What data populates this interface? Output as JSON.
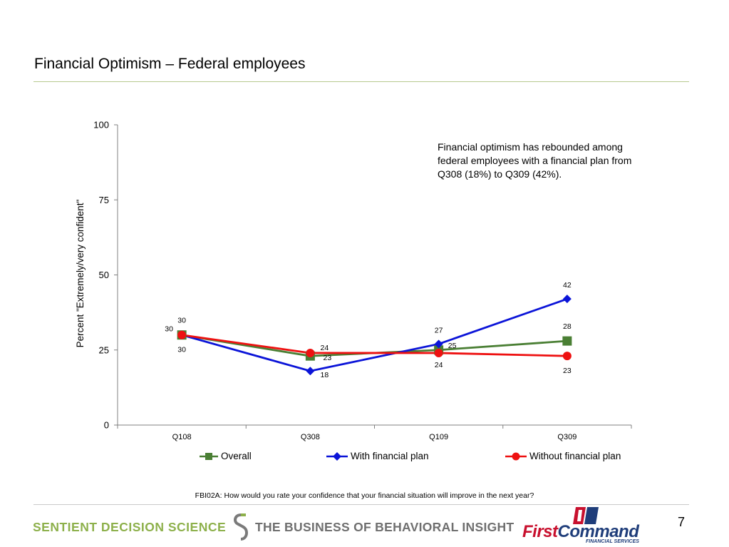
{
  "slide": {
    "title": "Financial Optimism – Federal employees",
    "page_number": "7",
    "question_note": "FBI02A: How would you rate your confidence that your financial situation will improve in the next year?"
  },
  "footer": {
    "left_logo_text": "SENTIENT DECISION SCIENCE",
    "tagline": "THE BUSINESS OF BEHAVIORAL INSIGHT",
    "right_logo_first": "First",
    "right_logo_command": "Command",
    "right_logo_sub": "FINANCIAL SERVICES",
    "colors": {
      "sds_green": "#8db04b",
      "tagline_gray": "#6f6f6f",
      "fc_red": "#c8102e",
      "fc_blue": "#1f3d7a"
    }
  },
  "chart_data": {
    "type": "line",
    "categories": [
      "Q108",
      "Q308",
      "Q109",
      "Q309"
    ],
    "ylabel": "Percent \"Extremely/very confident\"",
    "xlabel": "",
    "ylim": [
      0,
      100
    ],
    "yticks": [
      0,
      25,
      50,
      75,
      100
    ],
    "grid": false,
    "legend_position": "bottom",
    "annotation": "Financial optimism has rebounded among federal employees with a financial plan from Q308 (18%) to Q309 (42%).",
    "series": [
      {
        "name": "Overall",
        "values": [
          30,
          23,
          25,
          28
        ],
        "color": "#4a7f34",
        "marker": "square"
      },
      {
        "name": "With financial plan",
        "values": [
          30,
          18,
          27,
          42
        ],
        "color": "#0b14d8",
        "marker": "diamond"
      },
      {
        "name": "Without financial plan",
        "values": [
          30,
          24,
          24,
          23
        ],
        "color": "#ee1111",
        "marker": "circle"
      }
    ]
  }
}
